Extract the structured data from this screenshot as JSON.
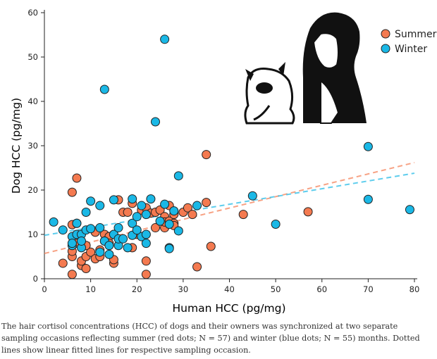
{
  "chart_data": {
    "type": "scatter",
    "xlabel": "Human HCC (pg/mg)",
    "ylabel": "Dog HCC (pg/mg)",
    "xlim": [
      0,
      80
    ],
    "ylim": [
      0,
      60
    ],
    "xticks": [
      0,
      10,
      20,
      30,
      40,
      50,
      60,
      70,
      80
    ],
    "yticks": [
      0,
      10,
      20,
      30,
      40,
      50,
      60
    ],
    "grid": false,
    "legend_position": "top-right",
    "series": [
      {
        "name": "Summer",
        "color": "#f47a50",
        "points": [
          [
            6,
            19.5
          ],
          [
            7,
            22.7
          ],
          [
            6,
            12.2
          ],
          [
            7,
            12.5
          ],
          [
            4,
            3.5
          ],
          [
            6,
            1
          ],
          [
            6,
            5
          ],
          [
            6,
            6.2
          ],
          [
            7,
            8
          ],
          [
            8,
            3
          ],
          [
            8,
            4
          ],
          [
            9,
            2.3
          ],
          [
            9,
            5
          ],
          [
            10,
            6
          ],
          [
            11,
            4.5
          ],
          [
            12,
            5
          ],
          [
            12,
            6.5
          ],
          [
            13,
            10
          ],
          [
            14,
            9.5
          ],
          [
            14,
            8
          ],
          [
            15,
            3.5
          ],
          [
            15,
            4.3
          ],
          [
            15,
            10
          ],
          [
            16,
            17.8
          ],
          [
            17,
            15
          ],
          [
            18,
            15
          ],
          [
            19,
            17
          ],
          [
            19,
            7
          ],
          [
            20,
            10
          ],
          [
            21,
            15.5
          ],
          [
            22,
            16
          ],
          [
            22,
            4
          ],
          [
            22,
            1
          ],
          [
            23,
            14.8
          ],
          [
            24,
            15
          ],
          [
            24,
            11.5
          ],
          [
            25,
            15.5
          ],
          [
            26,
            14
          ],
          [
            26,
            11.5
          ],
          [
            26,
            12.8
          ],
          [
            27,
            13
          ],
          [
            27,
            16.5
          ],
          [
            28,
            12.5
          ],
          [
            28,
            14.5
          ],
          [
            30,
            15
          ],
          [
            31,
            16
          ],
          [
            32,
            14.5
          ],
          [
            33,
            2.7
          ],
          [
            35,
            17.2
          ],
          [
            35,
            28
          ],
          [
            36,
            7.3
          ],
          [
            43,
            14.5
          ],
          [
            57,
            15.1
          ],
          [
            13,
            8.5
          ],
          [
            11,
            10.5
          ],
          [
            9,
            7.5
          ],
          [
            28,
            12
          ]
        ],
        "fit": [
          [
            0,
            5.7
          ],
          [
            80,
            26.2
          ]
        ]
      },
      {
        "name": "Winter",
        "color": "#1ab8e6",
        "points": [
          [
            2,
            12.8
          ],
          [
            4,
            11
          ],
          [
            6,
            9.5
          ],
          [
            6,
            7.5
          ],
          [
            6,
            8
          ],
          [
            7,
            10
          ],
          [
            7,
            12.5
          ],
          [
            8,
            10
          ],
          [
            8,
            7
          ],
          [
            8,
            8.5
          ],
          [
            9,
            15
          ],
          [
            9,
            11
          ],
          [
            10,
            17.5
          ],
          [
            10,
            11.3
          ],
          [
            12,
            16.5
          ],
          [
            12,
            11.5
          ],
          [
            12,
            6
          ],
          [
            13,
            42.7
          ],
          [
            13,
            8.5
          ],
          [
            14,
            7.5
          ],
          [
            14,
            5.5
          ],
          [
            15,
            10
          ],
          [
            15,
            17.8
          ],
          [
            16,
            11.5
          ],
          [
            16,
            7.5
          ],
          [
            16,
            9
          ],
          [
            17,
            9
          ],
          [
            18,
            7
          ],
          [
            19,
            9.8
          ],
          [
            19,
            18
          ],
          [
            19,
            12.5
          ],
          [
            20,
            14
          ],
          [
            21,
            16.5
          ],
          [
            21,
            9.5
          ],
          [
            22,
            8
          ],
          [
            22,
            10
          ],
          [
            22,
            14.5
          ],
          [
            24,
            35.4
          ],
          [
            25,
            13
          ],
          [
            26,
            54
          ],
          [
            26,
            16.8
          ],
          [
            27,
            12.3
          ],
          [
            27,
            7
          ],
          [
            27,
            6.8
          ],
          [
            28,
            15.3
          ],
          [
            29,
            23.2
          ],
          [
            29,
            10.8
          ],
          [
            33,
            16.5
          ],
          [
            45,
            18.7
          ],
          [
            50,
            12.3
          ],
          [
            70,
            29.8
          ],
          [
            70,
            17.9
          ],
          [
            79,
            15.6
          ],
          [
            23,
            18
          ],
          [
            20,
            11
          ]
        ],
        "fit": [
          [
            0,
            9.8
          ],
          [
            80,
            23.8
          ]
        ]
      }
    ]
  },
  "caption": "The hair cortisol concentrations (HCC) of dogs and their owners was synchronized at two separate sampling occasions reflecting summer (red dots; N = 57) and winter (blue dots; N = 55) months. Dotted lines show linear fitted lines for respective sampling occasion."
}
